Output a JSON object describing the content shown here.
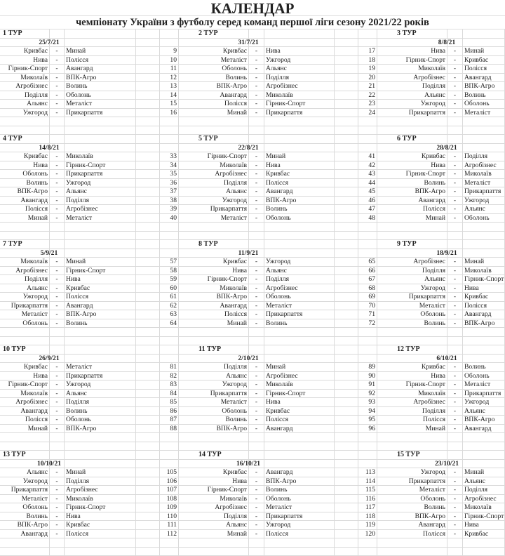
{
  "title": "КАЛЕНДАР",
  "subtitle": "чемпіонату України з футболу серед команд першої ліги сезону 2021/22 років",
  "separator": "-",
  "tours": [
    {
      "label": "1 ТУР",
      "date": "25/7/21",
      "games": [
        {
          "home": "Кривбас",
          "away": "Минай"
        },
        {
          "home": "Нива",
          "away": "Полісся"
        },
        {
          "home": "Гірник-Спорт",
          "away": "Авангард"
        },
        {
          "home": "Миколаїв",
          "away": "ВПК-Агро"
        },
        {
          "home": "Агробізнес",
          "away": "Волинь"
        },
        {
          "home": "Поділля",
          "away": "Оболонь"
        },
        {
          "home": "Альянс",
          "away": "Металіст"
        },
        {
          "home": "Ужгород",
          "away": "Прикарпаття"
        }
      ]
    },
    {
      "label": "2 ТУР",
      "date": "31/7/21",
      "games": [
        {
          "no": "9",
          "home": "Кривбас",
          "away": "Нива"
        },
        {
          "no": "10",
          "home": "Металіст",
          "away": "Ужгород"
        },
        {
          "no": "11",
          "home": "Оболонь",
          "away": "Альянс"
        },
        {
          "no": "12",
          "home": "Волинь",
          "away": "Поділля"
        },
        {
          "no": "13",
          "home": "ВПК-Агро",
          "away": "Агробізнес"
        },
        {
          "no": "14",
          "home": "Авангард",
          "away": "Миколаїв"
        },
        {
          "no": "15",
          "home": "Полісся",
          "away": "Гірник-Спорт"
        },
        {
          "no": "16",
          "home": "Минай",
          "away": "Прикарпаття"
        }
      ]
    },
    {
      "label": "3 ТУР",
      "date": "8/8/21",
      "games": [
        {
          "no": "17",
          "home": "Нива",
          "away": "Минай"
        },
        {
          "no": "18",
          "home": "Гірник-Спорт",
          "away": "Кривбас"
        },
        {
          "no": "19",
          "home": "Миколаїв",
          "away": "Полісся"
        },
        {
          "no": "20",
          "home": "Агробізнес",
          "away": "Авангард"
        },
        {
          "no": "21",
          "home": "Поділля",
          "away": "ВПК-Агро"
        },
        {
          "no": "22",
          "home": "Альянс",
          "away": "Волинь"
        },
        {
          "no": "23",
          "home": "Ужгород",
          "away": "Оболонь"
        },
        {
          "no": "24",
          "home": "Прикарпаття",
          "away": "Металіст"
        }
      ]
    },
    {
      "label": "4 ТУР",
      "date": "14/8/21",
      "games": [
        {
          "home": "Кривбас",
          "away": "Миколаїв"
        },
        {
          "home": "Нива",
          "away": "Гірник-Спорт"
        },
        {
          "home": "Оболонь",
          "away": "Прикарпаття"
        },
        {
          "home": "Волинь",
          "away": "Ужгород"
        },
        {
          "home": "ВПК-Агро",
          "away": "Альянс"
        },
        {
          "home": "Авангард",
          "away": "Поділля"
        },
        {
          "home": "Полісся",
          "away": "Агробізнес"
        },
        {
          "home": "Минай",
          "away": "Металіст"
        }
      ]
    },
    {
      "label": "5 ТУР",
      "date": "22/8/21",
      "games": [
        {
          "no": "33",
          "home": "Гірник-Спорт",
          "away": "Минай"
        },
        {
          "no": "34",
          "home": "Миколаїв",
          "away": "Нива"
        },
        {
          "no": "35",
          "home": "Агробізнес",
          "away": "Кривбас"
        },
        {
          "no": "36",
          "home": "Поділля",
          "away": "Полісся"
        },
        {
          "no": "37",
          "home": "Альянс",
          "away": "Авангард"
        },
        {
          "no": "38",
          "home": "Ужгород",
          "away": "ВПК-Агро"
        },
        {
          "no": "39",
          "home": "Прикарпаття",
          "away": "Волинь"
        },
        {
          "no": "40",
          "home": "Металіст",
          "away": "Оболонь"
        }
      ]
    },
    {
      "label": "6 ТУР",
      "date": "28/8/21",
      "games": [
        {
          "no": "41",
          "home": "Кривбас",
          "away": "Поділля"
        },
        {
          "no": "42",
          "home": "Нива",
          "away": "Агробізнес"
        },
        {
          "no": "43",
          "home": "Гірник-Спорт",
          "away": "Миколаїв"
        },
        {
          "no": "44",
          "home": "Волинь",
          "away": "Металіст"
        },
        {
          "no": "45",
          "home": "ВПК-Агро",
          "away": "Прикарпаття"
        },
        {
          "no": "46",
          "home": "Авангард",
          "away": "Ужгород"
        },
        {
          "no": "47",
          "home": "Полісся",
          "away": "Альянс"
        },
        {
          "no": "48",
          "home": "Минай",
          "away": "Оболонь"
        }
      ]
    },
    {
      "label": "7 ТУР",
      "date": "5/9/21",
      "games": [
        {
          "home": "Миколаїв",
          "away": "Минай"
        },
        {
          "home": "Агробізнес",
          "away": "Гірник-Спорт"
        },
        {
          "home": "Поділля",
          "away": "Нива"
        },
        {
          "home": "Альянс",
          "away": "Кривбас"
        },
        {
          "home": "Ужгород",
          "away": "Полісся"
        },
        {
          "home": "Прикарпаття",
          "away": "Авангард"
        },
        {
          "home": "Металіст",
          "away": "ВПК-Агро"
        },
        {
          "home": "Оболонь",
          "away": "Волинь"
        }
      ]
    },
    {
      "label": "8 ТУР",
      "date": "11/9/21",
      "games": [
        {
          "no": "57",
          "home": "Кривбас",
          "away": "Ужгород"
        },
        {
          "no": "58",
          "home": "Нива",
          "away": "Альянс"
        },
        {
          "no": "59",
          "home": "Гірник-Спорт",
          "away": "Поділля"
        },
        {
          "no": "60",
          "home": "Миколаїв",
          "away": "Агробізнес"
        },
        {
          "no": "61",
          "home": "ВПК-Агро",
          "away": "Оболонь"
        },
        {
          "no": "62",
          "home": "Авангард",
          "away": "Металіст"
        },
        {
          "no": "63",
          "home": "Полісся",
          "away": "Прикарпаття"
        },
        {
          "no": "64",
          "home": "Минай",
          "away": "Волинь"
        }
      ]
    },
    {
      "label": "9 ТУР",
      "date": "18/9/21",
      "games": [
        {
          "no": "65",
          "home": "Агробізнес",
          "away": "Минай"
        },
        {
          "no": "66",
          "home": "Поділля",
          "away": "Миколаїв"
        },
        {
          "no": "67",
          "home": "Альянс",
          "away": "Гірник-Спорт"
        },
        {
          "no": "68",
          "home": "Ужгород",
          "away": "Нива"
        },
        {
          "no": "69",
          "home": "Прикарпаття",
          "away": "Кривбас"
        },
        {
          "no": "70",
          "home": "Металіст",
          "away": "Полісся"
        },
        {
          "no": "71",
          "home": "Оболонь",
          "away": "Авангард"
        },
        {
          "no": "72",
          "home": "Волинь",
          "away": "ВПК-Агро"
        }
      ]
    },
    {
      "label": "10 ТУР",
      "date": "26/9/21",
      "games": [
        {
          "home": "Кривбас",
          "away": "Металіст"
        },
        {
          "home": "Нива",
          "away": "Прикарпаття"
        },
        {
          "home": "Гірник-Спорт",
          "away": "Ужгород"
        },
        {
          "home": "Миколаїв",
          "away": "Альянс"
        },
        {
          "home": "Агробізнес",
          "away": "Поділля"
        },
        {
          "home": "Авангард",
          "away": "Волинь"
        },
        {
          "home": "Полісся",
          "away": "Оболонь"
        },
        {
          "home": "Минай",
          "away": "ВПК-Агро"
        }
      ]
    },
    {
      "label": "11 ТУР",
      "date": "2/10/21",
      "games": [
        {
          "no": "81",
          "home": "Поділля",
          "away": "Минай"
        },
        {
          "no": "82",
          "home": "Альянс",
          "away": "Агробізнес"
        },
        {
          "no": "83",
          "home": "Ужгород",
          "away": "Миколаїв"
        },
        {
          "no": "84",
          "home": "Прикарпаття",
          "away": "Гірник-Спорт"
        },
        {
          "no": "85",
          "home": "Металіст",
          "away": "Нива"
        },
        {
          "no": "86",
          "home": "Оболонь",
          "away": "Кривбас"
        },
        {
          "no": "87",
          "home": "Волинь",
          "away": "Полісся"
        },
        {
          "no": "88",
          "home": "ВПК-Агро",
          "away": "Авангард"
        }
      ]
    },
    {
      "label": "12 ТУР",
      "date": "6/10/21",
      "games": [
        {
          "no": "89",
          "home": "Кривбас",
          "away": "Волинь"
        },
        {
          "no": "90",
          "home": "Нива",
          "away": "Оболонь"
        },
        {
          "no": "91",
          "home": "Гірник-Спорт",
          "away": "Металіст"
        },
        {
          "no": "92",
          "home": "Миколаїв",
          "away": "Прикарпаття"
        },
        {
          "no": "93",
          "home": "Агробізнес",
          "away": "Ужгород"
        },
        {
          "no": "94",
          "home": "Поділля",
          "away": "Альянс"
        },
        {
          "no": "95",
          "home": "Полісся",
          "away": "ВПК-Агро"
        },
        {
          "no": "96",
          "home": "Минай",
          "away": "Авангард"
        }
      ]
    },
    {
      "label": "13 ТУР",
      "date": "10/10/21",
      "games": [
        {
          "home": "Альянс",
          "away": "Минай"
        },
        {
          "home": "Ужгород",
          "away": "Поділля"
        },
        {
          "home": "Прикарпаття",
          "away": "Агробізнес"
        },
        {
          "home": "Металіст",
          "away": "Миколаїв"
        },
        {
          "home": "Оболонь",
          "away": "Гірник-Спорт"
        },
        {
          "home": "Волинь",
          "away": "Нива"
        },
        {
          "home": "ВПК-Агро",
          "away": "Кривбас"
        },
        {
          "home": "Авангард",
          "away": "Полісся"
        }
      ]
    },
    {
      "label": "14 ТУР",
      "date": "16/10/21",
      "games": [
        {
          "no": "105",
          "home": "Кривбас",
          "away": "Авангард"
        },
        {
          "no": "106",
          "home": "Нива",
          "away": "ВПК-Агро"
        },
        {
          "no": "107",
          "home": "Гірник-Спорт",
          "away": "Волинь"
        },
        {
          "no": "108",
          "home": "Миколаїв",
          "away": "Оболонь"
        },
        {
          "no": "109",
          "home": "Агробізнес",
          "away": "Металіст"
        },
        {
          "no": "110",
          "home": "Поділля",
          "away": "Прикарпаття"
        },
        {
          "no": "111",
          "home": "Альянс",
          "away": "Ужгород"
        },
        {
          "no": "112",
          "home": "Минай",
          "away": "Полісся"
        }
      ]
    },
    {
      "label": "15 ТУР",
      "date": "23/10/21",
      "games": [
        {
          "no": "113",
          "home": "Ужгород",
          "away": "Минай"
        },
        {
          "no": "114",
          "home": "Прикарпаття",
          "away": "Альянс"
        },
        {
          "no": "115",
          "home": "Металіст",
          "away": "Поділля"
        },
        {
          "no": "116",
          "home": "Оболонь",
          "away": "Агробізнес"
        },
        {
          "no": "117",
          "home": "Волинь",
          "away": "Миколаїв"
        },
        {
          "no": "118",
          "home": "ВПК-Агро",
          "away": "Гірник-Спорт"
        },
        {
          "no": "119",
          "home": "Авангард",
          "away": "Нива"
        },
        {
          "no": "120",
          "home": "Полісся",
          "away": "Кривбас"
        }
      ]
    }
  ]
}
